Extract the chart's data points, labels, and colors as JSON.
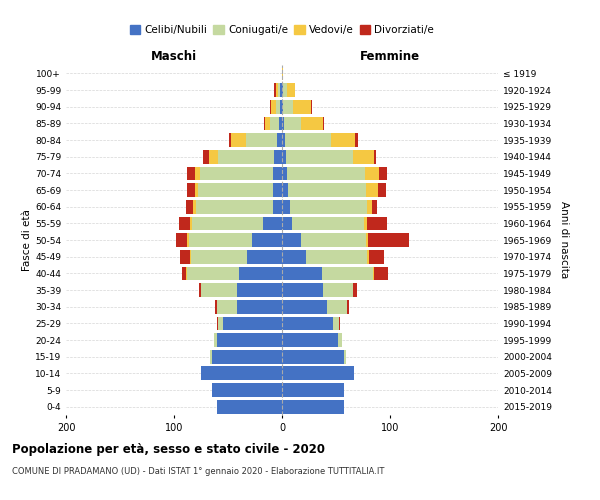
{
  "age_groups_bottom_to_top": [
    "0-4",
    "5-9",
    "10-14",
    "15-19",
    "20-24",
    "25-29",
    "30-34",
    "35-39",
    "40-44",
    "45-49",
    "50-54",
    "55-59",
    "60-64",
    "65-69",
    "70-74",
    "75-79",
    "80-84",
    "85-89",
    "90-94",
    "95-99",
    "100+"
  ],
  "birth_years_bottom_to_top": [
    "2015-2019",
    "2010-2014",
    "2005-2009",
    "2000-2004",
    "1995-1999",
    "1990-1994",
    "1985-1989",
    "1980-1984",
    "1975-1979",
    "1970-1974",
    "1965-1969",
    "1960-1964",
    "1955-1959",
    "1950-1954",
    "1945-1949",
    "1940-1944",
    "1935-1939",
    "1930-1934",
    "1925-1929",
    "1920-1924",
    "≤ 1919"
  ],
  "colors": {
    "celibi": "#4472c4",
    "coniugati": "#c5d9a0",
    "vedovi": "#f5c842",
    "divorziati": "#c0281c"
  },
  "maschi_celibi": [
    60,
    65,
    75,
    65,
    60,
    55,
    42,
    42,
    40,
    32,
    28,
    18,
    8,
    8,
    8,
    7,
    5,
    3,
    2,
    2,
    0
  ],
  "maschi_coniugati": [
    0,
    0,
    0,
    2,
    3,
    4,
    18,
    33,
    48,
    52,
    58,
    65,
    72,
    70,
    68,
    52,
    28,
    8,
    4,
    2,
    0
  ],
  "maschi_vedovi": [
    0,
    0,
    0,
    0,
    0,
    0,
    0,
    0,
    1,
    1,
    2,
    2,
    2,
    3,
    5,
    9,
    14,
    5,
    4,
    2,
    0
  ],
  "maschi_divorziati": [
    0,
    0,
    0,
    0,
    0,
    1,
    2,
    2,
    4,
    9,
    10,
    10,
    7,
    7,
    7,
    5,
    2,
    1,
    1,
    1,
    0
  ],
  "femmine_celibi": [
    57,
    57,
    67,
    57,
    52,
    47,
    42,
    38,
    37,
    22,
    18,
    9,
    7,
    6,
    5,
    4,
    3,
    2,
    1,
    1,
    0
  ],
  "femmine_coniugati": [
    0,
    0,
    0,
    2,
    4,
    6,
    18,
    28,
    47,
    57,
    60,
    67,
    72,
    72,
    72,
    62,
    42,
    16,
    9,
    4,
    0
  ],
  "femmine_vedovi": [
    0,
    0,
    0,
    0,
    0,
    0,
    0,
    0,
    1,
    2,
    2,
    3,
    4,
    11,
    13,
    19,
    23,
    20,
    17,
    7,
    1
  ],
  "femmine_divorziati": [
    0,
    0,
    0,
    0,
    0,
    1,
    2,
    3,
    13,
    13,
    38,
    18,
    5,
    7,
    7,
    2,
    2,
    1,
    1,
    0,
    0
  ],
  "title": "Popolazione per età, sesso e stato civile - 2020",
  "subtitle": "COMUNE DI PRADAMANO (UD) - Dati ISTAT 1° gennaio 2020 - Elaborazione TUTTITALIA.IT",
  "ylabel_left": "Fasce di età",
  "ylabel_right": "Anni di nascita",
  "xlabel_maschi": "Maschi",
  "xlabel_femmine": "Femmine",
  "xlim": 200,
  "legend_labels": [
    "Celibi/Nubili",
    "Coniugati/e",
    "Vedovi/e",
    "Divorziati/e"
  ],
  "background_color": "#ffffff",
  "grid_color": "#cccccc"
}
